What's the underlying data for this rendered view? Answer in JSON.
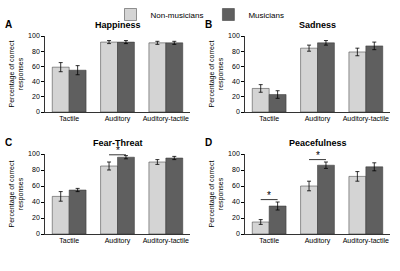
{
  "chart_data": [
    {
      "type": "bar",
      "panel": "A",
      "title": "Happiness",
      "categories": [
        "Tactile",
        "Auditory",
        "Auditory-tactile"
      ],
      "ylabel": "Percentage of correct responses",
      "ylim": [
        0,
        100
      ],
      "yticks": [
        0,
        20,
        40,
        60,
        80,
        100
      ],
      "grid": false,
      "series": [
        {
          "name": "Non-musicians",
          "color": "#d4d4d4",
          "values": [
            59,
            92,
            91
          ],
          "errors": [
            6,
            2,
            2
          ]
        },
        {
          "name": "Musicians",
          "color": "#5f5f5f",
          "values": [
            55,
            92,
            91
          ],
          "errors": [
            6,
            2,
            2
          ]
        }
      ],
      "annotations": []
    },
    {
      "type": "bar",
      "panel": "B",
      "title": "Sadness",
      "categories": [
        "Tactile",
        "Auditory",
        "Auditory-tactile"
      ],
      "ylabel": "Percentage of correct responses",
      "ylim": [
        0,
        100
      ],
      "yticks": [
        0,
        20,
        40,
        60,
        80,
        100
      ],
      "grid": false,
      "series": [
        {
          "name": "Non-musicians",
          "color": "#d4d4d4",
          "values": [
            31,
            84,
            79
          ],
          "errors": [
            5,
            4,
            5
          ]
        },
        {
          "name": "Musicians",
          "color": "#5f5f5f",
          "values": [
            23,
            91,
            87
          ],
          "errors": [
            5,
            3,
            5
          ]
        }
      ],
      "annotations": []
    },
    {
      "type": "bar",
      "panel": "C",
      "title": "Fear-Threat",
      "categories": [
        "Tactile",
        "Auditory",
        "Auditory-tactile"
      ],
      "ylabel": "Percentage of correct responses",
      "ylim": [
        0,
        100
      ],
      "yticks": [
        0,
        20,
        40,
        60,
        80,
        100
      ],
      "grid": false,
      "series": [
        {
          "name": "Non-musicians",
          "color": "#d4d4d4",
          "values": [
            47,
            85,
            90
          ],
          "errors": [
            6,
            5,
            3
          ]
        },
        {
          "name": "Musicians",
          "color": "#5f5f5f",
          "values": [
            55,
            96,
            95
          ],
          "errors": [
            2,
            2,
            2
          ]
        }
      ],
      "annotations": [
        {
          "text": "*",
          "category": "Auditory"
        }
      ]
    },
    {
      "type": "bar",
      "panel": "D",
      "title": "Peacefulness",
      "categories": [
        "Tactile",
        "Auditory",
        "Auditory-tactile"
      ],
      "ylabel": "Percentage of correct responses",
      "ylim": [
        0,
        100
      ],
      "yticks": [
        0,
        20,
        40,
        60,
        80,
        100
      ],
      "grid": false,
      "series": [
        {
          "name": "Non-musicians",
          "color": "#d4d4d4",
          "values": [
            15,
            60,
            72
          ],
          "errors": [
            3,
            6,
            6
          ]
        },
        {
          "name": "Musicians",
          "color": "#5f5f5f",
          "values": [
            35,
            86,
            84
          ],
          "errors": [
            5,
            4,
            5
          ]
        }
      ],
      "annotations": [
        {
          "text": "*",
          "category": "Tactile"
        },
        {
          "text": "*",
          "category": "Auditory"
        }
      ]
    }
  ]
}
